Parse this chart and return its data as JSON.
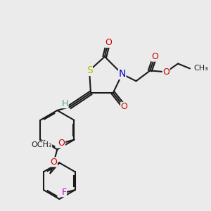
{
  "bg_color": "#ebebeb",
  "bond_color": "#1a1a1a",
  "bond_lw": 1.5,
  "font_size": 9,
  "atoms": {
    "S": {
      "color": "#cccc00",
      "label": "S"
    },
    "N": {
      "color": "#0000cc",
      "label": "N"
    },
    "O": {
      "color": "#cc0000",
      "label": "O"
    },
    "F": {
      "color": "#cc00cc",
      "label": "F"
    },
    "H": {
      "color": "#4d9999",
      "label": "H"
    }
  }
}
